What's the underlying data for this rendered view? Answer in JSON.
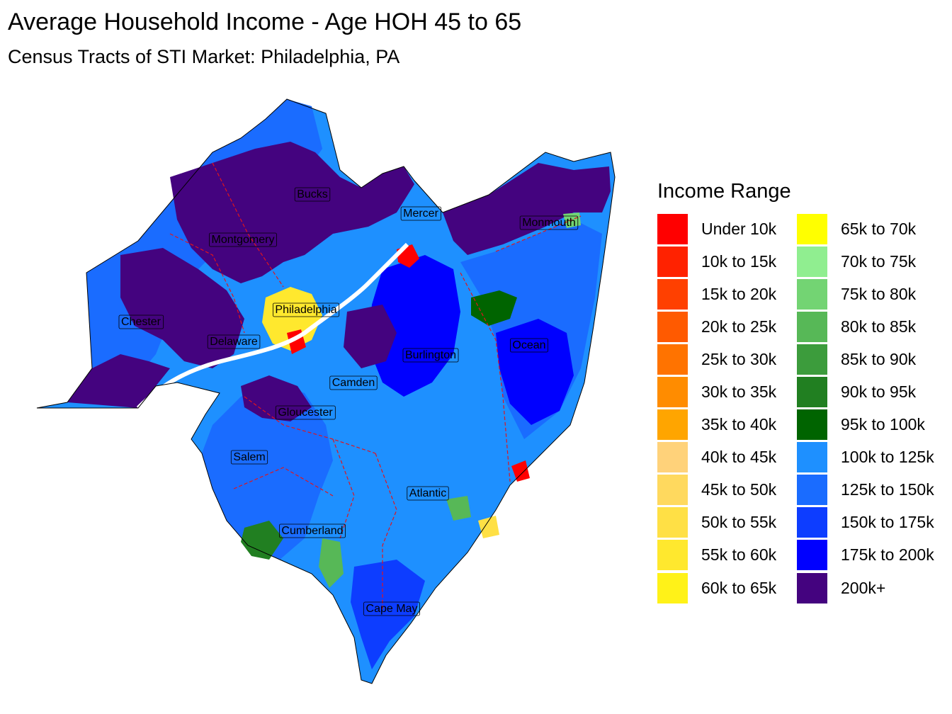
{
  "map": {
    "title": "Average Household Income - Age HOH 45 to 65",
    "subtitle": "Census Tracts of STI Market: Philadelphia, PA",
    "county_labels": [
      {
        "name": "Bucks"
      },
      {
        "name": "Mercer"
      },
      {
        "name": "Monmouth"
      },
      {
        "name": "Montgomery"
      },
      {
        "name": "Philadelphia"
      },
      {
        "name": "Chester"
      },
      {
        "name": "Delaware"
      },
      {
        "name": "Ocean"
      },
      {
        "name": "Burlington"
      },
      {
        "name": "Camden"
      },
      {
        "name": "Gloucester"
      },
      {
        "name": "Salem"
      },
      {
        "name": "Atlantic"
      },
      {
        "name": "Cumberland"
      },
      {
        "name": "Cape May"
      }
    ],
    "county_border_color": "#e0141e"
  },
  "legend": {
    "title": "Income Range",
    "items": [
      {
        "label": "Under 10k",
        "color": "#ff0000"
      },
      {
        "label": "10k to 15k",
        "color": "#ff2200"
      },
      {
        "label": "15k to 20k",
        "color": "#ff4000"
      },
      {
        "label": "20k to 25k",
        "color": "#ff5a00"
      },
      {
        "label": "25k to 30k",
        "color": "#ff7300"
      },
      {
        "label": "30k to 35k",
        "color": "#ff8c00"
      },
      {
        "label": "35k to 40k",
        "color": "#ffa500"
      },
      {
        "label": "40k to 45k",
        "color": "#ffd27a"
      },
      {
        "label": "45k to 50k",
        "color": "#ffd95e"
      },
      {
        "label": "50k to 55k",
        "color": "#ffe045"
      },
      {
        "label": "55k to 60k",
        "color": "#ffe82e"
      },
      {
        "label": "60k to 65k",
        "color": "#fff218"
      },
      {
        "label": "65k to 70k",
        "color": "#ffff00"
      },
      {
        "label": "70k to 75k",
        "color": "#90ee90"
      },
      {
        "label": "75k to 80k",
        "color": "#73d473"
      },
      {
        "label": "80k to 85k",
        "color": "#57b857"
      },
      {
        "label": "85k to 90k",
        "color": "#3c9c3c"
      },
      {
        "label": "90k to 95k",
        "color": "#217f21"
      },
      {
        "label": "95k to 100k",
        "color": "#006400"
      },
      {
        "label": "100k to 125k",
        "color": "#1e90ff"
      },
      {
        "label": "125k to 150k",
        "color": "#1a6cff"
      },
      {
        "label": "150k to 175k",
        "color": "#0d3dff"
      },
      {
        "label": "175k to 200k",
        "color": "#0000ff"
      },
      {
        "label": "200k+",
        "color": "#44037f"
      }
    ]
  }
}
